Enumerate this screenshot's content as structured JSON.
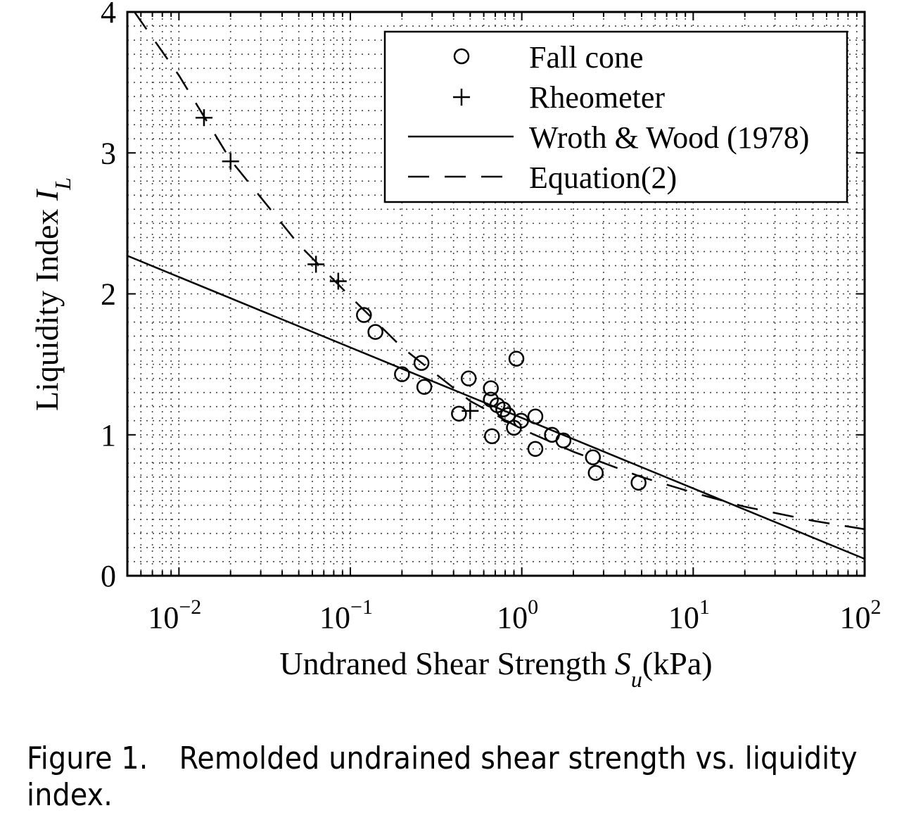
{
  "chart_data": {
    "type": "scatter",
    "xlabel": "Undraned Shear Strength",
    "xlabel_symbol": "S",
    "xlabel_subscript": "u",
    "xlabel_unit": "(kPa)",
    "ylabel": "Liquidity Index",
    "ylabel_symbol": "I",
    "ylabel_subscript": "L",
    "x_scale": "log",
    "xlim": [
      0.005,
      100
    ],
    "ylim": [
      0,
      4
    ],
    "x_ticks": [
      {
        "value": 0.01,
        "base": "10",
        "exp": "−2"
      },
      {
        "value": 0.1,
        "base": "10",
        "exp": "−1"
      },
      {
        "value": 1,
        "base": "10",
        "exp": "0"
      },
      {
        "value": 10,
        "base": "10",
        "exp": "1"
      },
      {
        "value": 100,
        "base": "10",
        "exp": "2"
      }
    ],
    "y_ticks": [
      0,
      1,
      2,
      3,
      4
    ],
    "grid": true,
    "legend_position": "top-right",
    "series": [
      {
        "name": "Fall cone",
        "marker": "circle",
        "points": [
          [
            0.12,
            1.85
          ],
          [
            0.14,
            1.73
          ],
          [
            0.2,
            1.43
          ],
          [
            0.26,
            1.51
          ],
          [
            0.27,
            1.34
          ],
          [
            0.43,
            1.15
          ],
          [
            0.49,
            1.4
          ],
          [
            0.66,
            1.33
          ],
          [
            0.66,
            1.25
          ],
          [
            0.72,
            1.21
          ],
          [
            0.78,
            1.18
          ],
          [
            0.83,
            1.14
          ],
          [
            0.67,
            0.99
          ],
          [
            0.9,
            1.05
          ],
          [
            0.93,
            1.54
          ],
          [
            0.99,
            1.1
          ],
          [
            1.2,
            1.13
          ],
          [
            1.2,
            0.9
          ],
          [
            1.5,
            1.0
          ],
          [
            1.75,
            0.96
          ],
          [
            2.6,
            0.84
          ],
          [
            2.7,
            0.73
          ],
          [
            4.8,
            0.66
          ]
        ]
      },
      {
        "name": "Rheometer",
        "marker": "plus",
        "points": [
          [
            0.014,
            3.25
          ],
          [
            0.02,
            2.94
          ],
          [
            0.063,
            2.21
          ],
          [
            0.085,
            2.09
          ],
          [
            0.5,
            1.17
          ]
        ]
      },
      {
        "name": "Wroth & Wood (1978)",
        "line": "solid",
        "points": [
          [
            0.005,
            2.27
          ],
          [
            100,
            0.12
          ]
        ]
      },
      {
        "name": "Equation(2)",
        "line": "dashed",
        "points": [
          [
            0.0055,
            4.0
          ],
          [
            0.01,
            3.55
          ],
          [
            0.02,
            2.95
          ],
          [
            0.05,
            2.35
          ],
          [
            0.1,
            1.98
          ],
          [
            0.2,
            1.62
          ],
          [
            0.5,
            1.24
          ],
          [
            1,
            1.04
          ],
          [
            2,
            0.88
          ],
          [
            5,
            0.7
          ],
          [
            10,
            0.59
          ],
          [
            20,
            0.49
          ],
          [
            50,
            0.39
          ],
          [
            100,
            0.33
          ]
        ]
      }
    ]
  },
  "caption": {
    "label": "Figure 1.",
    "text": "Remolded undrained shear strength vs. liquidity index."
  }
}
